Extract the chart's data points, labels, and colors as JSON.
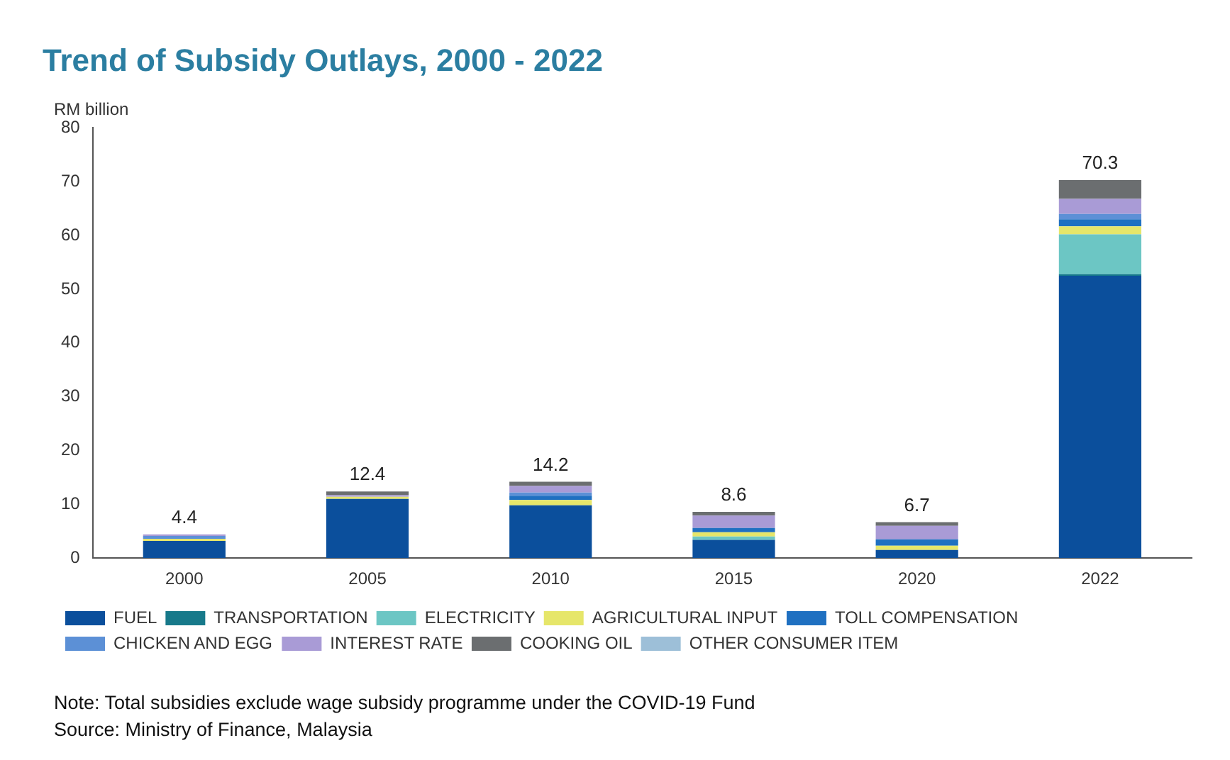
{
  "chart_data": {
    "type": "bar",
    "title": "Trend of Subsidy Outlays, 2000 - 2022",
    "ylabel": "RM billion",
    "categories": [
      "2000",
      "2005",
      "2010",
      "2015",
      "2020",
      "2022"
    ],
    "stacked": true,
    "grid": false,
    "legend": "bottom",
    "ylim": [
      0,
      80
    ],
    "yticks": [
      0,
      10,
      20,
      30,
      40,
      50,
      60,
      70,
      80
    ],
    "totals": [
      "4.4",
      "12.4",
      "14.2",
      "8.6",
      "6.7",
      "70.3"
    ],
    "series": [
      {
        "name": "FUEL",
        "color": "#0b4f9c",
        "values": [
          3.2,
          11.0,
          9.8,
          3.4,
          1.5,
          52.5
        ]
      },
      {
        "name": "TRANSPORTATION",
        "color": "#17798a",
        "values": [
          0,
          0,
          0,
          0,
          0,
          0.3
        ]
      },
      {
        "name": "ELECTRICITY",
        "color": "#6cc6c4",
        "values": [
          0,
          0,
          0,
          0.6,
          0,
          7.4
        ]
      },
      {
        "name": "AGRICULTURAL INPUT",
        "color": "#e6e66a",
        "values": [
          0.4,
          0.4,
          1.0,
          0.8,
          0.8,
          1.5
        ]
      },
      {
        "name": "TOLL COMPENSATION",
        "color": "#1f70c1",
        "values": [
          0,
          0,
          0.8,
          0.8,
          1.2,
          1.3
        ]
      },
      {
        "name": "CHICKEN AND EGG",
        "color": "#5c90d6",
        "values": [
          0.5,
          0,
          0.6,
          0,
          0,
          1.0
        ]
      },
      {
        "name": "INTEREST RATE",
        "color": "#a99bd6",
        "values": [
          0.3,
          0.3,
          1.2,
          2.3,
          2.5,
          2.8
        ]
      },
      {
        "name": "COOKING OIL",
        "color": "#6b6e70",
        "values": [
          0,
          0.7,
          0.8,
          0.7,
          0.7,
          3.5
        ]
      },
      {
        "name": "OTHER CONSUMER ITEM",
        "color": "#9dbfd8",
        "values": [
          0,
          0,
          0,
          0,
          0,
          0
        ]
      }
    ],
    "annotations": [
      "Note: Total subsidies exclude wage subsidy programme under the COVID-19 Fund",
      "Source: Ministry of Finance, Malaysia"
    ]
  }
}
